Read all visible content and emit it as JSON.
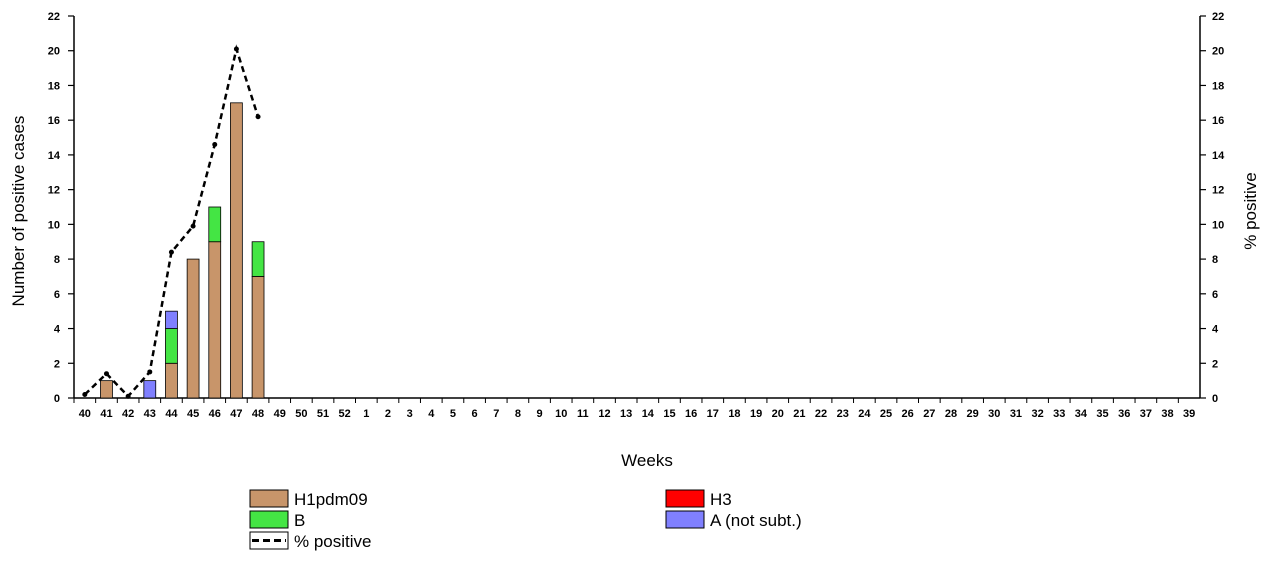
{
  "chart_data": {
    "type": "bar",
    "categories": [
      "40",
      "41",
      "42",
      "43",
      "44",
      "45",
      "46",
      "47",
      "48",
      "49",
      "50",
      "51",
      "52",
      "1",
      "2",
      "3",
      "4",
      "5",
      "6",
      "7",
      "8",
      "9",
      "10",
      "11",
      "12",
      "13",
      "14",
      "15",
      "16",
      "17",
      "18",
      "19",
      "20",
      "21",
      "22",
      "23",
      "24",
      "25",
      "26",
      "27",
      "28",
      "29",
      "30",
      "31",
      "32",
      "33",
      "34",
      "35",
      "36",
      "37",
      "38",
      "39"
    ],
    "series": [
      {
        "name": "H1pdm09",
        "color": "#c8956a",
        "values": [
          0,
          1,
          0,
          0,
          2,
          8,
          9,
          17,
          7,
          0,
          0,
          0,
          0,
          0,
          0,
          0,
          0,
          0,
          0,
          0,
          0,
          0,
          0,
          0,
          0,
          0,
          0,
          0,
          0,
          0,
          0,
          0,
          0,
          0,
          0,
          0,
          0,
          0,
          0,
          0,
          0,
          0,
          0,
          0,
          0,
          0,
          0,
          0,
          0,
          0,
          0,
          0
        ]
      },
      {
        "name": "B",
        "color": "#44e544",
        "values": [
          0,
          0,
          0,
          0,
          2,
          0,
          2,
          0,
          2,
          0,
          0,
          0,
          0,
          0,
          0,
          0,
          0,
          0,
          0,
          0,
          0,
          0,
          0,
          0,
          0,
          0,
          0,
          0,
          0,
          0,
          0,
          0,
          0,
          0,
          0,
          0,
          0,
          0,
          0,
          0,
          0,
          0,
          0,
          0,
          0,
          0,
          0,
          0,
          0,
          0,
          0,
          0
        ]
      },
      {
        "name": "A (not subt.)",
        "color": "#8080ff",
        "values": [
          0,
          0,
          0,
          1,
          1,
          0,
          0,
          0,
          0,
          0,
          0,
          0,
          0,
          0,
          0,
          0,
          0,
          0,
          0,
          0,
          0,
          0,
          0,
          0,
          0,
          0,
          0,
          0,
          0,
          0,
          0,
          0,
          0,
          0,
          0,
          0,
          0,
          0,
          0,
          0,
          0,
          0,
          0,
          0,
          0,
          0,
          0,
          0,
          0,
          0,
          0,
          0
        ]
      },
      {
        "name": "H3",
        "color": "#ff0000",
        "values": [
          0,
          0,
          0,
          0,
          0,
          0,
          0,
          0,
          0,
          0,
          0,
          0,
          0,
          0,
          0,
          0,
          0,
          0,
          0,
          0,
          0,
          0,
          0,
          0,
          0,
          0,
          0,
          0,
          0,
          0,
          0,
          0,
          0,
          0,
          0,
          0,
          0,
          0,
          0,
          0,
          0,
          0,
          0,
          0,
          0,
          0,
          0,
          0,
          0,
          0,
          0,
          0
        ]
      }
    ],
    "line": {
      "name": "% positive",
      "color": "#000000",
      "values": [
        0.2,
        1.4,
        0.1,
        1.5,
        8.4,
        9.9,
        14.6,
        20.1,
        16.2
      ]
    },
    "xlabel": "Weeks",
    "ylabel": "Number of positive cases",
    "y2label": "% positive",
    "ylim": [
      0,
      22
    ],
    "y2lim": [
      0,
      22
    ],
    "yticks": [
      0,
      2,
      4,
      6,
      8,
      10,
      12,
      14,
      16,
      18,
      20,
      22
    ],
    "legend": {
      "placement": "bottom",
      "items": [
        {
          "label": "H1pdm09",
          "kind": "box",
          "color": "#c8956a"
        },
        {
          "label": "H3",
          "kind": "box",
          "color": "#ff0000"
        },
        {
          "label": "B",
          "kind": "box",
          "color": "#44e544"
        },
        {
          "label": "A (not subt.)",
          "kind": "box",
          "color": "#8080ff"
        },
        {
          "label": "% positive",
          "kind": "dashed-line",
          "color": "#000000"
        }
      ]
    }
  }
}
